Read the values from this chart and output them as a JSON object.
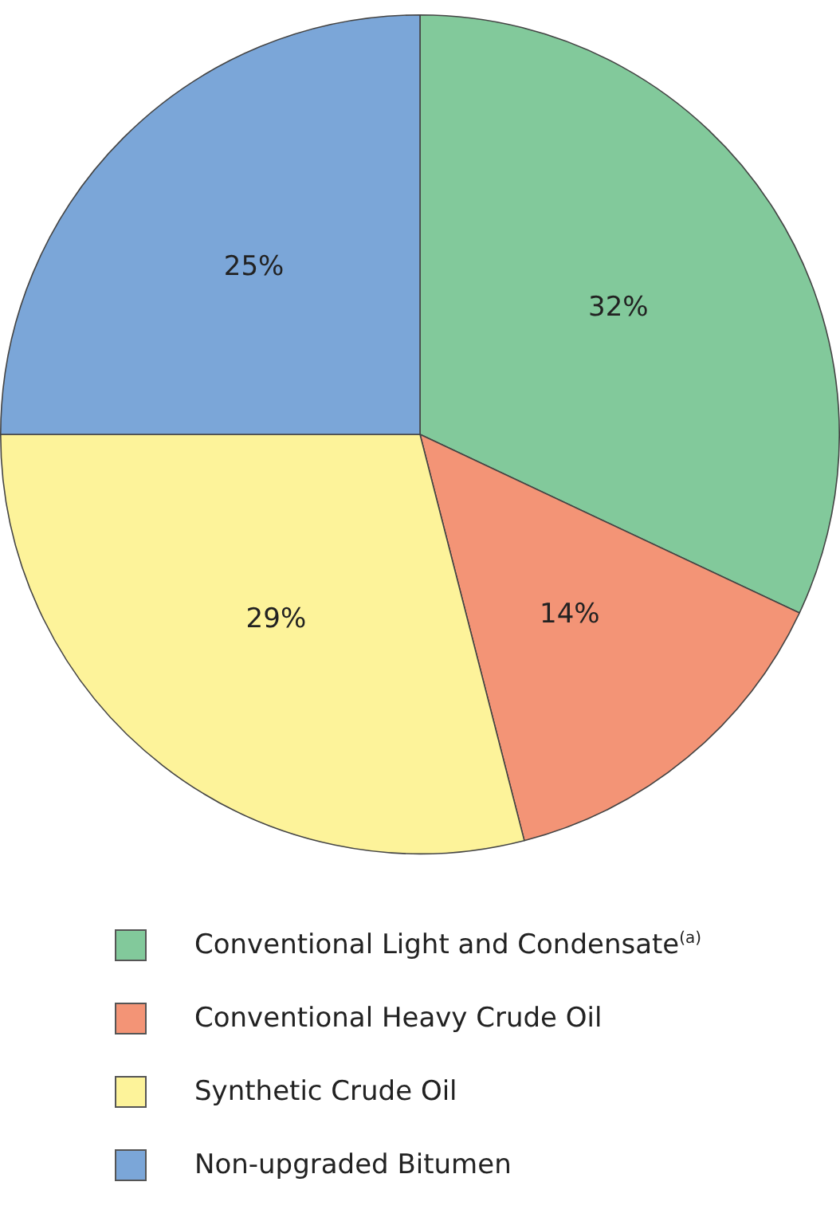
{
  "chart_data": {
    "type": "pie",
    "categories": [
      "Conventional Light and Condensate$^{(a)}$",
      "Conventional Heavy Crude Oil",
      "Synthetic Crude Oil",
      "Non-upgraded Bitumen"
    ],
    "values": [
      32,
      14,
      29,
      25
    ],
    "colors": [
      "#82c99b",
      "#f39476",
      "#fdf39a",
      "#7ba6d8"
    ],
    "value_labels": [
      "32%",
      "14%",
      "29%",
      "25%"
    ],
    "legend": "bottom"
  }
}
